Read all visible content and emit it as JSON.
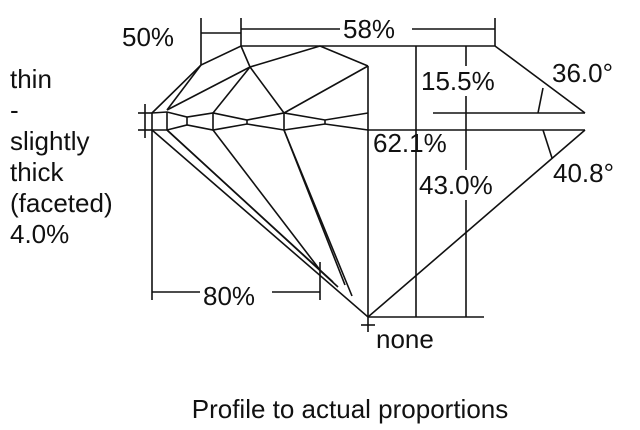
{
  "girdle_label": [
    "thin",
    "-",
    "slightly",
    "thick",
    "(faceted)",
    "4.0%"
  ],
  "measurements": {
    "lower_half": "50%",
    "table": "58%",
    "crown_height": "15.5%",
    "crown_angle": "36.0°",
    "total_depth": "62.1%",
    "pavilion_depth": "43.0%",
    "pavilion_angle": "40.8°",
    "star": "80%",
    "culet": "none"
  },
  "caption": "Profile to actual proportions"
}
